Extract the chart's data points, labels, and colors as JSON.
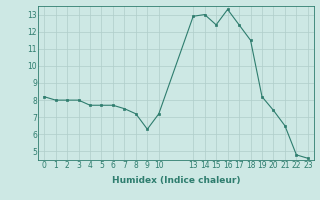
{
  "x": [
    0,
    1,
    2,
    3,
    4,
    5,
    6,
    7,
    8,
    9,
    10,
    13,
    14,
    15,
    16,
    17,
    18,
    19,
    20,
    21,
    22,
    23
  ],
  "y": [
    8.2,
    8.0,
    8.0,
    8.0,
    7.7,
    7.7,
    7.7,
    7.5,
    7.2,
    6.3,
    7.2,
    12.9,
    13.0,
    12.4,
    13.3,
    12.4,
    11.5,
    8.2,
    7.4,
    6.5,
    4.8,
    4.6
  ],
  "line_color": "#2e7d6e",
  "marker": "s",
  "marker_size": 2,
  "bg_color": "#cde8e4",
  "grid_color": "#b0ceca",
  "xlabel": "Humidex (Indice chaleur)",
  "ylim": [
    4.5,
    13.5
  ],
  "xlim": [
    -0.5,
    23.5
  ],
  "yticks": [
    5,
    6,
    7,
    8,
    9,
    10,
    11,
    12,
    13
  ],
  "xticks": [
    0,
    1,
    2,
    3,
    4,
    5,
    6,
    7,
    8,
    9,
    10,
    13,
    14,
    15,
    16,
    17,
    18,
    19,
    20,
    21,
    22,
    23
  ],
  "tick_fontsize": 5.5,
  "label_fontsize": 6.5
}
